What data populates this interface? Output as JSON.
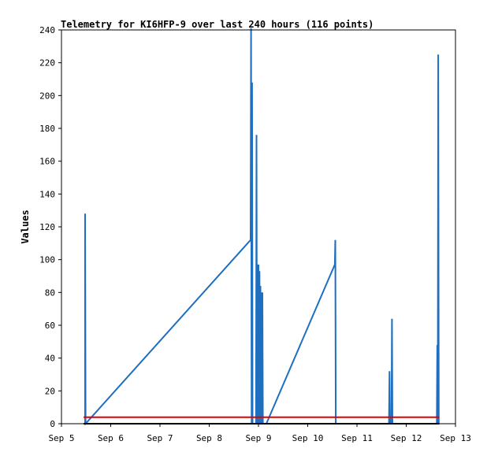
{
  "chart_data": {
    "type": "line",
    "title": "Telemetry for KI6HFP-9 over last 240 hours (116 points)",
    "xlabel": "",
    "ylabel": "Values",
    "ylim": [
      0,
      240
    ],
    "yticks": [
      0,
      20,
      40,
      60,
      80,
      100,
      120,
      140,
      160,
      180,
      200,
      220,
      240
    ],
    "xlim": [
      0,
      8
    ],
    "xticks": [
      {
        "x": 0,
        "label": "Sep 5"
      },
      {
        "x": 1,
        "label": "Sep 6"
      },
      {
        "x": 2,
        "label": "Sep 7"
      },
      {
        "x": 3,
        "label": "Sep 8"
      },
      {
        "x": 4,
        "label": "Sep 9"
      },
      {
        "x": 5,
        "label": "Sep 10"
      },
      {
        "x": 6,
        "label": "Sep 11"
      },
      {
        "x": 7,
        "label": "Sep 12"
      },
      {
        "x": 8,
        "label": "Sep 13"
      }
    ],
    "grid": false,
    "legend": "none",
    "series": [
      {
        "color": "#1f6fc0",
        "points": [
          [
            0.48,
            0
          ],
          [
            0.48,
            128
          ],
          [
            0.49,
            0
          ],
          [
            3.84,
            112
          ],
          [
            3.85,
            241
          ],
          [
            3.86,
            0
          ],
          [
            3.87,
            208
          ],
          [
            3.88,
            0
          ],
          [
            3.95,
            0
          ],
          [
            3.96,
            176
          ],
          [
            3.97,
            0
          ],
          [
            3.98,
            97
          ],
          [
            3.99,
            0
          ],
          [
            4.0,
            97
          ],
          [
            4.01,
            0
          ],
          [
            4.02,
            93
          ],
          [
            4.03,
            0
          ],
          [
            4.04,
            84
          ],
          [
            4.05,
            0
          ],
          [
            4.06,
            80
          ],
          [
            4.07,
            0
          ],
          [
            4.08,
            80
          ],
          [
            4.09,
            0
          ],
          [
            4.16,
            0
          ],
          [
            5.55,
            97
          ],
          [
            5.56,
            112
          ],
          [
            5.57,
            0
          ],
          [
            6.65,
            0
          ],
          [
            6.66,
            32
          ],
          [
            6.67,
            0
          ],
          [
            6.7,
            0
          ],
          [
            6.71,
            64
          ],
          [
            6.72,
            0
          ],
          [
            7.62,
            0
          ],
          [
            7.63,
            48
          ],
          [
            7.64,
            0
          ],
          [
            7.65,
            225
          ],
          [
            7.66,
            0
          ]
        ]
      },
      {
        "color": "#e00000",
        "points": [
          [
            0.45,
            4
          ],
          [
            7.67,
            4
          ]
        ]
      },
      {
        "color": "#000000",
        "points": [
          [
            0.45,
            0
          ],
          [
            7.67,
            0
          ]
        ]
      }
    ]
  }
}
